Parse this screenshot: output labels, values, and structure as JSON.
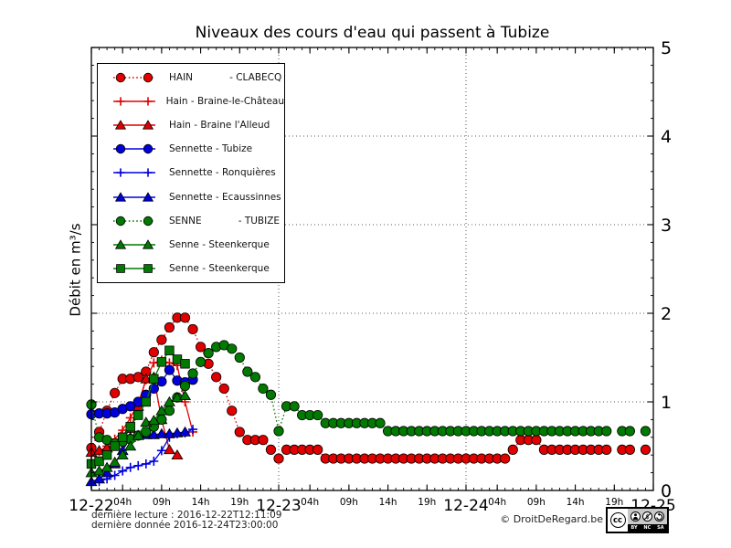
{
  "title": "Niveaux des cours d'eau qui passent à Tubize",
  "y_axis_label": "Débit en m³/s",
  "footer": {
    "last_read": "dernière lecture : 2016-12-22T12:11:09",
    "last_data": "dernière donnée  2016-12-24T23:00:00"
  },
  "credit": {
    "copyright": "© DroitDeRegard.be",
    "cc": "cc",
    "by": "BY",
    "nc": "NC",
    "sa": "SA"
  },
  "colors": {
    "red": "#e00000",
    "blue": "#0000dd",
    "green": "#007a00",
    "axis": "#000000"
  },
  "chart_data": {
    "type": "line",
    "title": "Niveaux des cours d'eau qui passent à Tubize",
    "ylabel": "Débit en m³/s",
    "x_unit": "hours since 2016-12-22 00:00",
    "x_range": [
      0,
      72
    ],
    "y_range": [
      0,
      5
    ],
    "y_ticks": [
      0,
      1,
      2,
      3,
      4,
      5
    ],
    "y_grid_at": [
      1,
      2,
      3,
      4
    ],
    "x_grid_at": [
      24,
      48
    ],
    "grid": "dotted",
    "legend_position": "upper left",
    "x_day_ticks": [
      {
        "t": 0,
        "label": "12-22"
      },
      {
        "t": 24,
        "label": "12-23"
      },
      {
        "t": 48,
        "label": "12-24"
      },
      {
        "t": 72,
        "label": "12-25"
      }
    ],
    "x_hour_ticks": [
      {
        "t": 4,
        "label": "04h"
      },
      {
        "t": 9,
        "label": "09h"
      },
      {
        "t": 14,
        "label": "14h"
      },
      {
        "t": 19,
        "label": "19h"
      },
      {
        "t": 28,
        "label": "04h"
      },
      {
        "t": 33,
        "label": "09h"
      },
      {
        "t": 38,
        "label": "14h"
      },
      {
        "t": 43,
        "label": "19h"
      },
      {
        "t": 52,
        "label": "04h"
      },
      {
        "t": 57,
        "label": "09h"
      },
      {
        "t": 62,
        "label": "14h"
      },
      {
        "t": 67,
        "label": "19h"
      }
    ],
    "series": [
      {
        "name": "HAIN            - CLABECQ",
        "color": "#e00000",
        "marker": "circle",
        "linestyle": "dotted",
        "x0_hours": 0,
        "x_step_hours": 1,
        "values": [
          0.48,
          0.66,
          0.9,
          1.1,
          1.26,
          1.26,
          1.28,
          1.34,
          1.56,
          1.7,
          1.84,
          1.95,
          1.95,
          1.82,
          1.62,
          1.43,
          1.28,
          1.15,
          0.9,
          0.66,
          0.57,
          0.57,
          0.57,
          0.46,
          0.36,
          0.46,
          0.46,
          0.46,
          0.46,
          0.46,
          0.36,
          0.36,
          0.36,
          0.36,
          0.36,
          0.36,
          0.36,
          0.36,
          0.36,
          0.36,
          0.36,
          0.36,
          0.36,
          0.36,
          0.36,
          0.36,
          0.36,
          0.36,
          0.36,
          0.36,
          0.36,
          0.36,
          0.36,
          0.36,
          0.46,
          0.57,
          0.57,
          0.57,
          0.46,
          0.46,
          0.46,
          0.46,
          0.46,
          0.46,
          0.46,
          0.46,
          0.46,
          null,
          0.46,
          0.46,
          null,
          0.46
        ]
      },
      {
        "name": "Hain - Braine-le-Château",
        "color": "#e00000",
        "marker": "plus",
        "linestyle": "solid",
        "x0_hours": 0,
        "x_step_hours": 1,
        "values": [
          0.4,
          0.44,
          0.5,
          0.58,
          0.68,
          0.82,
          0.98,
          1.25,
          1.44,
          1.47,
          1.44,
          1.41,
          1.0,
          0.66
        ]
      },
      {
        "name": "Hain - Braine l'Alleud",
        "color": "#e00000",
        "marker": "triangle",
        "linestyle": "solid",
        "x0_hours": 0,
        "x_step_hours": 1,
        "values": [
          0.43,
          0.45,
          0.48,
          0.52,
          0.58,
          0.7,
          0.95,
          1.26,
          1.28,
          0.8,
          0.46,
          0.4
        ]
      },
      {
        "name": "Sennette - Tubize",
        "color": "#0000dd",
        "marker": "circle",
        "linestyle": "solid",
        "x0_hours": 0,
        "x_step_hours": 1,
        "values": [
          0.86,
          0.87,
          0.87,
          0.88,
          0.92,
          0.95,
          1.0,
          1.08,
          1.15,
          1.23,
          1.36,
          1.24,
          1.22,
          1.25
        ]
      },
      {
        "name": "Sennette - Ronquières",
        "color": "#0000dd",
        "marker": "plus",
        "linestyle": "solid",
        "x0_hours": 0,
        "x_step_hours": 1,
        "values": [
          0.07,
          0.1,
          0.13,
          0.17,
          0.22,
          0.26,
          0.28,
          0.3,
          0.33,
          0.45,
          0.6,
          0.64,
          0.65,
          0.69
        ]
      },
      {
        "name": "Sennette - Ecaussinnes",
        "color": "#0000dd",
        "marker": "triangle",
        "linestyle": "solid",
        "x0_hours": 0,
        "x_step_hours": 1,
        "values": [
          0.1,
          0.13,
          0.2,
          0.3,
          0.45,
          0.6,
          0.62,
          0.63,
          0.63,
          0.64,
          0.64,
          0.65,
          0.66
        ]
      },
      {
        "name": "SENNE            - TUBIZE",
        "color": "#007a00",
        "marker": "circle",
        "linestyle": "dotted",
        "x0_hours": 0,
        "x_step_hours": 1,
        "values": [
          0.97,
          0.6,
          0.57,
          0.53,
          0.55,
          0.58,
          0.62,
          0.66,
          0.72,
          0.8,
          0.9,
          1.05,
          1.18,
          1.32,
          1.45,
          1.55,
          1.62,
          1.64,
          1.6,
          1.5,
          1.34,
          1.28,
          1.15,
          1.08,
          0.67,
          0.95,
          0.95,
          0.85,
          0.85,
          0.85,
          0.76,
          0.76,
          0.76,
          0.76,
          0.76,
          0.76,
          0.76,
          0.76,
          0.67,
          0.67,
          0.67,
          0.67,
          0.67,
          0.67,
          0.67,
          0.67,
          0.67,
          0.67,
          0.67,
          0.67,
          0.67,
          0.67,
          0.67,
          0.67,
          0.67,
          0.67,
          0.67,
          0.67,
          0.67,
          0.67,
          0.67,
          0.67,
          0.67,
          0.67,
          0.67,
          0.67,
          0.67,
          null,
          0.67,
          0.67,
          null,
          0.67
        ]
      },
      {
        "name": "Senne - Steenkerque",
        "color": "#007a00",
        "marker": "triangle",
        "linestyle": "solid",
        "x0_hours": 0,
        "x_step_hours": 1,
        "values": [
          0.2,
          0.22,
          0.26,
          0.32,
          0.4,
          0.5,
          0.62,
          0.77,
          0.79,
          0.9,
          1.0,
          1.05,
          1.07
        ]
      },
      {
        "name": "Senne - Steenkerque",
        "color": "#007a00",
        "marker": "square",
        "linestyle": "solid",
        "x0_hours": 0,
        "x_step_hours": 1,
        "values": [
          0.3,
          0.33,
          0.4,
          0.5,
          0.6,
          0.72,
          0.85,
          1.0,
          1.26,
          1.45,
          1.58,
          1.48,
          1.43
        ]
      }
    ]
  }
}
